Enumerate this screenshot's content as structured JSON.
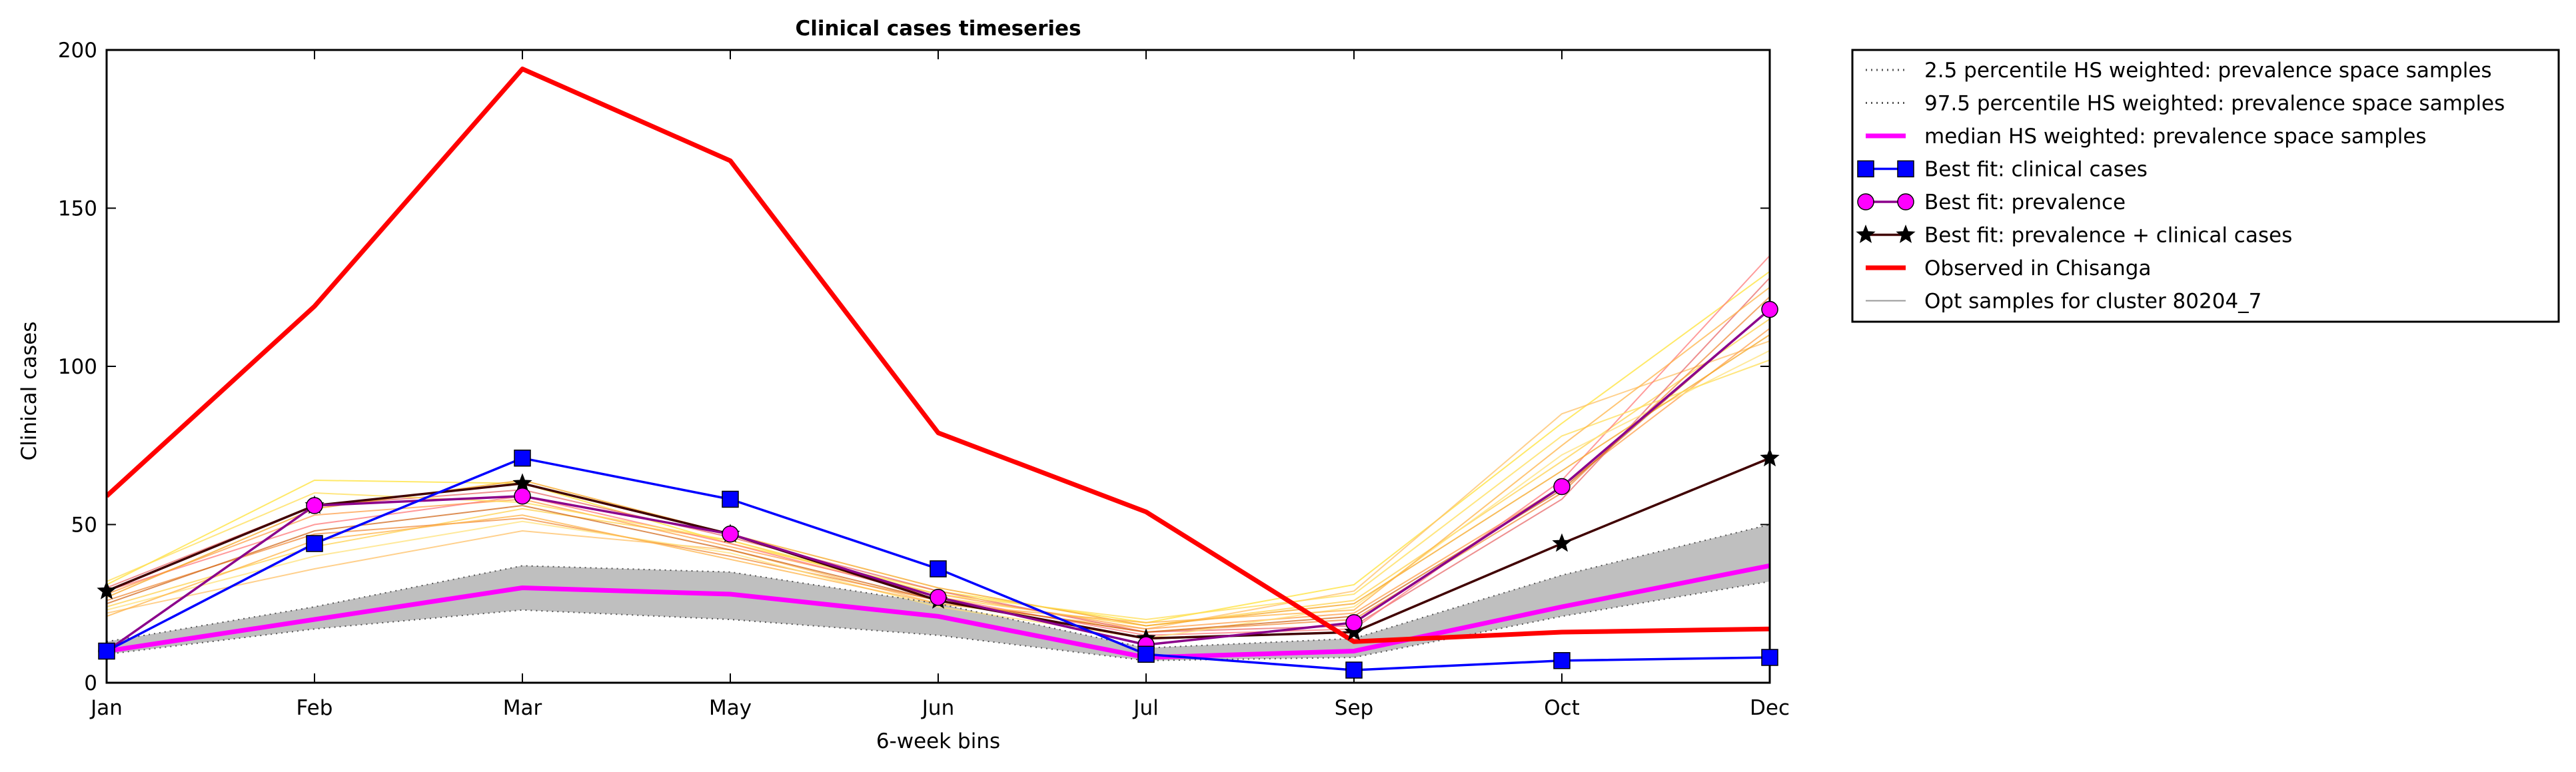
{
  "chart_data": {
    "type": "line",
    "title": "Clinical cases timeseries",
    "xlabel": "6-week bins",
    "ylabel": "Clinical cases",
    "categories": [
      "Jan",
      "Feb",
      "Mar",
      "May",
      "Jun",
      "Jul",
      "Sep",
      "Oct",
      "Dec"
    ],
    "yticks": [
      "0",
      "50",
      "100",
      "150",
      "200"
    ],
    "ylim": [
      0,
      200
    ],
    "grid": false,
    "legend_placement": "outside-right-top",
    "band": {
      "fill": "#bfbfbf",
      "lower": [
        9,
        17,
        23,
        20,
        15,
        7,
        8,
        21,
        32
      ],
      "upper": [
        13,
        24,
        37,
        35,
        25,
        11,
        14,
        34,
        50
      ]
    },
    "opt_samples": {
      "label": "Opt samples for cluster 80204_7",
      "colors": [
        "#ffe135",
        "#ffd24d",
        "#ffc066",
        "#ff9f4a",
        "#f08c3c",
        "#e86a6a",
        "#ff7a7a",
        "#ffe27a",
        "#f5a623",
        "#d2691e",
        "#ffdd55",
        "#ffb347"
      ],
      "samples": [
        [
          31,
          64,
          63,
          44,
          29,
          19,
          31,
          82,
          130
        ],
        [
          24,
          43,
          55,
          45,
          27,
          18,
          26,
          70,
          115
        ],
        [
          22,
          36,
          48,
          42,
          25,
          17,
          29,
          85,
          108
        ],
        [
          28,
          53,
          58,
          43,
          28,
          17,
          22,
          62,
          112
        ],
        [
          26,
          47,
          52,
          40,
          26,
          16,
          20,
          60,
          122
        ],
        [
          30,
          56,
          61,
          46,
          29,
          16,
          18,
          58,
          128
        ],
        [
          29,
          50,
          59,
          44,
          27,
          15,
          17,
          64,
          135
        ],
        [
          23,
          40,
          51,
          41,
          24,
          14,
          24,
          72,
          105
        ],
        [
          27,
          55,
          64,
          47,
          30,
          18,
          25,
          67,
          110
        ],
        [
          25,
          48,
          56,
          42,
          26,
          16,
          21,
          61,
          118
        ],
        [
          32,
          60,
          57,
          45,
          28,
          20,
          28,
          78,
          102
        ],
        [
          21,
          45,
          53,
          39,
          25,
          19,
          23,
          75,
          125
        ]
      ]
    },
    "series": [
      {
        "key": "p2_5",
        "name": "2.5 percentile HS weighted: prevalence space samples",
        "color": "#555555",
        "style": "dotted",
        "marker": "none",
        "values": [
          9,
          17,
          23,
          20,
          15,
          7,
          8,
          21,
          32
        ]
      },
      {
        "key": "p97_5",
        "name": "97.5 percentile HS weighted: prevalence space samples",
        "color": "#555555",
        "style": "dotted",
        "marker": "none",
        "values": [
          13,
          24,
          37,
          35,
          25,
          11,
          14,
          34,
          50
        ]
      },
      {
        "key": "median",
        "name": "median HS weighted: prevalence space samples",
        "color": "#ff00ff",
        "style": "thick",
        "marker": "none",
        "values": [
          10,
          20,
          30,
          28,
          21,
          8,
          10,
          24,
          37
        ]
      },
      {
        "key": "bf_clinical",
        "name": "Best fit: clinical cases",
        "color": "#0000ff",
        "style": "solid",
        "marker": "square",
        "values": [
          10,
          44,
          71,
          58,
          36,
          9,
          4,
          7,
          8
        ]
      },
      {
        "key": "bf_prevalence",
        "name": "Best fit: prevalence",
        "color": "#8b008b",
        "style": "solid",
        "marker": "circle",
        "values": [
          10,
          56,
          59,
          47,
          27,
          12,
          19,
          62,
          118
        ]
      },
      {
        "key": "bf_both",
        "name": "Best fit: prevalence + clinical cases",
        "color": "#400000",
        "style": "solid",
        "marker": "star",
        "values": [
          29,
          56,
          63,
          47,
          26,
          14,
          16,
          44,
          71
        ]
      },
      {
        "key": "observed",
        "name": "Observed in Chisanga",
        "color": "#ff0000",
        "style": "thick",
        "marker": "none",
        "values": [
          59,
          119,
          194,
          165,
          79,
          54,
          13,
          16,
          17
        ]
      }
    ]
  }
}
